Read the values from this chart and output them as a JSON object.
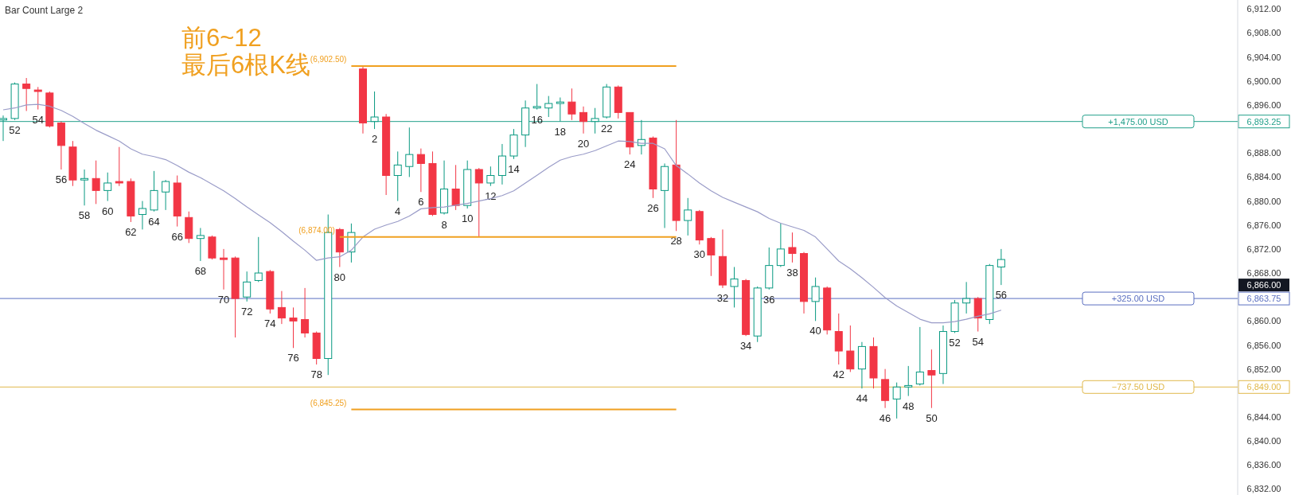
{
  "chart_data": {
    "type": "candlestick",
    "title": "Bar Count Large 2",
    "categories": [
      null,
      null,
      null,
      null,
      null,
      null,
      null,
      null,
      null,
      null,
      null,
      null,
      null,
      null,
      null,
      null,
      null,
      null,
      null,
      null,
      null,
      null,
      null,
      null,
      null,
      null,
      null,
      null,
      null,
      null,
      null,
      null,
      null,
      null,
      null,
      null,
      null,
      null,
      null,
      null,
      null,
      null,
      null,
      null,
      null,
      null,
      null,
      null,
      null,
      null,
      null,
      null,
      null,
      null,
      null,
      null,
      null,
      null,
      null,
      null,
      null,
      null,
      null,
      null,
      null,
      null,
      null,
      null,
      null,
      null,
      null,
      null,
      null,
      null,
      null,
      null,
      null,
      null,
      null,
      null,
      null,
      null,
      null,
      null,
      null,
      null,
      null
    ],
    "ohlc": [
      [
        6893.5,
        6894.25,
        6890,
        6893.75
      ],
      [
        6893.75,
        6899.75,
        6893.5,
        6899.5
      ],
      [
        6899.5,
        6900.5,
        6895,
        6898.75
      ],
      [
        6898.5,
        6899,
        6895.25,
        6898.25
      ],
      [
        6898,
        6898.25,
        6892.25,
        6892.5
      ],
      [
        6893,
        6893.25,
        6885.25,
        6889.25
      ],
      [
        6889,
        6890,
        6882.5,
        6883.5
      ],
      [
        6883.5,
        6885.25,
        6879.25,
        6883.75
      ],
      [
        6883.75,
        6886.75,
        6879.5,
        6881.75
      ],
      [
        6881.75,
        6884.75,
        6880,
        6883
      ],
      [
        6883.25,
        6889,
        6882.5,
        6883
      ],
      [
        6883.25,
        6883.75,
        6876.5,
        6877.5
      ],
      [
        6877.75,
        6880,
        6875.25,
        6878.75
      ],
      [
        6878.5,
        6885,
        6878.25,
        6881.75
      ],
      [
        6881.5,
        6883.5,
        6878.5,
        6883.25
      ],
      [
        6883,
        6884.25,
        6875.75,
        6877.5
      ],
      [
        6877.25,
        6878.25,
        6873,
        6873.75
      ],
      [
        6873.75,
        6875.5,
        6870,
        6874.25
      ],
      [
        6874,
        6874.25,
        6870.25,
        6870.5
      ],
      [
        6870.5,
        6872,
        6865.25,
        6870.25
      ],
      [
        6870.5,
        6870.75,
        6857.25,
        6863.75
      ],
      [
        6864,
        6868.25,
        6863.25,
        6866.5
      ],
      [
        6866.75,
        6874,
        6866.5,
        6868
      ],
      [
        6868.25,
        6868.5,
        6861.25,
        6862
      ],
      [
        6862.25,
        6865,
        6859.5,
        6860.5
      ],
      [
        6860.5,
        6862.25,
        6855.5,
        6860
      ],
      [
        6860.25,
        6865.5,
        6857.25,
        6858
      ],
      [
        6858,
        6858.25,
        6852.75,
        6853.75
      ],
      [
        6853.75,
        6877.75,
        6851,
        6874.75
      ],
      [
        6875.25,
        6875.5,
        6869,
        6871.5
      ],
      [
        6871.5,
        6876.25,
        6869.75,
        6874.75
      ],
      [
        6902,
        6902.5,
        6891.25,
        6893
      ],
      [
        6893.25,
        6898.25,
        6892,
        6894
      ],
      [
        6894,
        6894.5,
        6881,
        6884.25
      ],
      [
        6884.25,
        6888.25,
        6880,
        6886
      ],
      [
        6885.75,
        6892.25,
        6884,
        6887.75
      ],
      [
        6887.75,
        6888.75,
        6881.5,
        6886.25
      ],
      [
        6886.25,
        6888.25,
        6877.5,
        6877.75
      ],
      [
        6878,
        6886.75,
        6877.75,
        6882
      ],
      [
        6882,
        6886,
        6878.5,
        6879.25
      ],
      [
        6879.25,
        6886.75,
        6878.75,
        6885.25
      ],
      [
        6885.25,
        6885.5,
        6874,
        6883
      ],
      [
        6883,
        6885.75,
        6882.5,
        6884.25
      ],
      [
        6884.25,
        6889.5,
        6882.75,
        6887.5
      ],
      [
        6887.5,
        6892,
        6887,
        6891
      ],
      [
        6891,
        6896.75,
        6889,
        6895.5
      ],
      [
        6895.5,
        6899.5,
        6895.25,
        6895.75
      ],
      [
        6895.5,
        6897.5,
        6894,
        6896.25
      ],
      [
        6896.25,
        6897.25,
        6893.25,
        6896.5
      ],
      [
        6896.5,
        6898.75,
        6893.5,
        6894.5
      ],
      [
        6894.75,
        6895.75,
        6891.25,
        6893.25
      ],
      [
        6893.25,
        6895.5,
        6891.25,
        6893.75
      ],
      [
        6894,
        6899.5,
        6893.75,
        6899
      ],
      [
        6899,
        6899.25,
        6893.75,
        6894.75
      ],
      [
        6894.75,
        6894.75,
        6887.75,
        6889
      ],
      [
        6889.25,
        6893.5,
        6887.75,
        6890.25
      ],
      [
        6890.5,
        6890.75,
        6880.5,
        6882
      ],
      [
        6881.75,
        6886.25,
        6875.5,
        6885.75
      ],
      [
        6886,
        6893.5,
        6875,
        6876.75
      ],
      [
        6876.75,
        6880.5,
        6874.25,
        6878.5
      ],
      [
        6878.25,
        6878.5,
        6872.75,
        6873.5
      ],
      [
        6873.75,
        6874,
        6867.5,
        6871
      ],
      [
        6870.75,
        6875.25,
        6865.5,
        6866
      ],
      [
        6865.75,
        6869,
        6862.25,
        6867
      ],
      [
        6866.75,
        6867,
        6857.5,
        6857.75
      ],
      [
        6857.5,
        6865.75,
        6856.5,
        6865.5
      ],
      [
        6865.5,
        6872.25,
        6865.25,
        6869.25
      ],
      [
        6869.25,
        6876.25,
        6869,
        6872
      ],
      [
        6872.25,
        6874.75,
        6869.75,
        6871.25
      ],
      [
        6871.25,
        6871.5,
        6861.25,
        6863.25
      ],
      [
        6863.25,
        6867.25,
        6860,
        6865.75
      ],
      [
        6865.5,
        6865.75,
        6857.75,
        6858.5
      ],
      [
        6858.25,
        6861.25,
        6852.75,
        6855
      ],
      [
        6855,
        6859.25,
        6851.5,
        6852
      ],
      [
        6852,
        6856.5,
        6848.75,
        6855.75
      ],
      [
        6855.75,
        6857.25,
        6848.75,
        6850.5
      ],
      [
        6850.25,
        6852,
        6845.5,
        6846.75
      ],
      [
        6847,
        6849.75,
        6843.75,
        6849
      ],
      [
        6849,
        6852.5,
        6847.5,
        6849.25
      ],
      [
        6849.5,
        6859,
        6849.25,
        6851.5
      ],
      [
        6851.75,
        6855.25,
        6845.5,
        6851
      ],
      [
        6851.25,
        6859.25,
        6849.5,
        6858.25
      ],
      [
        6858.25,
        6863.5,
        6858,
        6863
      ],
      [
        6863,
        6866.5,
        6861.25,
        6863.75
      ],
      [
        6863.75,
        6864,
        6858.25,
        6860.5
      ],
      [
        6860.25,
        6869.5,
        6859.5,
        6869.25
      ],
      [
        6869,
        6872,
        6866,
        6870.25
      ]
    ],
    "colors": [
      "#089981",
      "#089981",
      "#f23645",
      "#f23645",
      "#f23645",
      "#f23645",
      "#f23645",
      "#089981",
      "#f23645",
      "#089981",
      "#f23645",
      "#f23645",
      "#089981",
      "#089981",
      "#089981",
      "#f23645",
      "#f23645",
      "#089981",
      "#f23645",
      "#f23645",
      "#f23645",
      "#089981",
      "#089981",
      "#f23645",
      "#f23645",
      "#f23645",
      "#f23645",
      "#f23645",
      "#089981",
      "#f23645",
      "#089981",
      "#f23645",
      "#089981",
      "#f23645",
      "#089981",
      "#089981",
      "#f23645",
      "#f23645",
      "#089981",
      "#f23645",
      "#089981",
      "#f23645",
      "#089981",
      "#089981",
      "#089981",
      "#089981",
      "#089981",
      "#089981",
      "#089981",
      "#f23645",
      "#f23645",
      "#089981",
      "#089981",
      "#f23645",
      "#f23645",
      "#089981",
      "#f23645",
      "#089981",
      "#f23645",
      "#089981",
      "#f23645",
      "#f23645",
      "#f23645",
      "#089981",
      "#f23645",
      "#089981",
      "#089981",
      "#089981",
      "#f23645",
      "#f23645",
      "#089981",
      "#f23645",
      "#f23645",
      "#f23645",
      "#089981",
      "#f23645",
      "#f23645",
      "#089981",
      "#089981",
      "#089981",
      "#f23645",
      "#089981",
      "#089981",
      "#089981",
      "#f23645",
      "#089981",
      "#089981"
    ],
    "value_labels": [
      null,
      "52",
      null,
      "54",
      null,
      "56",
      null,
      "58",
      null,
      "60",
      null,
      "62",
      null,
      "64",
      null,
      "66",
      null,
      "68",
      null,
      "70",
      null,
      "72",
      null,
      "74",
      null,
      "76",
      null,
      "78",
      null,
      "80",
      null,
      null,
      "2",
      null,
      "4",
      null,
      "6",
      null,
      "8",
      null,
      "10",
      null,
      "12",
      null,
      "14",
      null,
      "16",
      null,
      "18",
      null,
      "20",
      null,
      "22",
      null,
      "24",
      null,
      "26",
      null,
      "28",
      null,
      "30",
      null,
      "32",
      null,
      "34",
      null,
      "36",
      null,
      "38",
      null,
      "40",
      null,
      "42",
      null,
      "44",
      null,
      "46",
      null,
      "48",
      null,
      "50",
      null,
      "52",
      null,
      "54",
      null,
      "56"
    ],
    "series": [
      {
        "type": "line",
        "color": "#9a9cc8",
        "values": [
          6895.2,
          6895.5,
          6896.0,
          6896.1,
          6895.8,
          6895.1,
          6894.1,
          6892.9,
          6891.8,
          6890.9,
          6890.0,
          6888.7,
          6887.8,
          6887.4,
          6886.9,
          6885.9,
          6884.8,
          6883.9,
          6882.8,
          6881.7,
          6880.4,
          6879.0,
          6877.7,
          6876.4,
          6874.9,
          6873.3,
          6871.8,
          6870.1,
          6870.5,
          6870.7,
          6871.8,
          6874.0,
          6875.3,
          6876.0,
          6876.6,
          6877.5,
          6878.7,
          6878.9,
          6879.0,
          6879.3,
          6879.6,
          6880.0,
          6880.4,
          6880.9,
          6881.7,
          6883.0,
          6884.3,
          6885.6,
          6886.8,
          6887.4,
          6887.8,
          6888.4,
          6889.2,
          6890.0,
          6889.9,
          6889.6,
          6889.6,
          6888.7,
          6885.9,
          6884.5,
          6883.0,
          6881.7,
          6880.6,
          6879.8,
          6879.0,
          6878.2,
          6877.1,
          6876.3,
          6875.7,
          6875.1,
          6874.0,
          6872.0,
          6870.0,
          6868.7,
          6867.2,
          6865.6,
          6863.9,
          6862.5,
          6861.4,
          6860.3,
          6859.7,
          6859.7,
          6859.9,
          6860.3,
          6860.8,
          6861.2,
          6861.8
        ]
      },
      {
        "type": "line",
        "name": "(6,902.50)",
        "color": "#f0a020",
        "values": [
          null,
          null,
          null,
          null,
          null,
          null,
          null,
          null,
          null,
          null,
          null,
          null,
          null,
          null,
          null,
          null,
          null,
          null,
          null,
          null,
          null,
          null,
          null,
          null,
          null,
          null,
          null,
          null,
          null,
          null,
          6902.5,
          6902.5,
          6902.5,
          6902.5,
          6902.5,
          6902.5,
          6902.5,
          6902.5,
          6902.5,
          6902.5,
          6902.5,
          6902.5,
          6902.5,
          6902.5,
          6902.5,
          6902.5,
          6902.5,
          6902.5,
          6902.5,
          6902.5,
          6902.5,
          6902.5,
          6902.5,
          6902.5,
          6902.5,
          6902.5,
          6902.5,
          6902.5,
          6902.5,
          null,
          null,
          null,
          null,
          null,
          null,
          null,
          null,
          null,
          null,
          null,
          null,
          null,
          null,
          null,
          null,
          null,
          null,
          null,
          null,
          null,
          null,
          null,
          null,
          null,
          null,
          null,
          null
        ]
      },
      {
        "type": "line",
        "name": "(6,874.00)",
        "color": "#f0a020",
        "values": [
          null,
          null,
          null,
          null,
          null,
          null,
          null,
          null,
          null,
          null,
          null,
          null,
          null,
          null,
          null,
          null,
          null,
          null,
          null,
          null,
          null,
          null,
          null,
          null,
          null,
          null,
          null,
          null,
          null,
          6874,
          6874,
          6874,
          6874,
          6874,
          6874,
          6874,
          6874,
          6874,
          6874,
          6874,
          6874,
          6874,
          6874,
          6874,
          6874,
          6874,
          6874,
          6874,
          6874,
          6874,
          6874,
          6874,
          6874,
          6874,
          6874,
          6874,
          6874,
          6874,
          6874,
          null,
          null,
          null,
          null,
          null,
          null,
          null,
          null,
          null,
          null,
          null,
          null,
          null,
          null,
          null,
          null,
          null,
          null,
          null,
          null,
          null,
          null,
          null,
          null,
          null,
          null,
          null,
          null
        ]
      },
      {
        "type": "line",
        "name": "(6,845.25)",
        "color": "#f0a020",
        "values": [
          null,
          null,
          null,
          null,
          null,
          null,
          null,
          null,
          null,
          null,
          null,
          null,
          null,
          null,
          null,
          null,
          null,
          null,
          null,
          null,
          null,
          null,
          null,
          null,
          null,
          null,
          null,
          null,
          null,
          null,
          6845.25,
          6845.25,
          6845.25,
          6845.25,
          6845.25,
          6845.25,
          6845.25,
          6845.25,
          6845.25,
          6845.25,
          6845.25,
          6845.25,
          6845.25,
          6845.25,
          6845.25,
          6845.25,
          6845.25,
          6845.25,
          6845.25,
          6845.25,
          6845.25,
          6845.25,
          6845.25,
          6845.25,
          6845.25,
          6845.25,
          6845.25,
          6845.25,
          6845.25,
          null,
          null,
          null,
          null,
          null,
          null,
          null,
          null,
          null,
          null,
          null,
          null,
          null,
          null,
          null,
          null,
          null,
          null,
          null,
          null,
          null,
          null,
          null,
          null,
          null,
          null,
          null,
          null
        ]
      }
    ],
    "ylim": [
      6831.0,
      6913.5
    ],
    "yticks": [
      {
        "value": 6832,
        "label": "6,832.00"
      },
      {
        "value": 6836,
        "label": "6,836.00"
      },
      {
        "value": 6840,
        "label": "6,840.00"
      },
      {
        "value": 6844,
        "label": "6,844.00"
      },
      {
        "value": 6849,
        "label": "6,849.00"
      },
      {
        "value": 6852,
        "label": "6,852.00"
      },
      {
        "value": 6856,
        "label": "6,856.00"
      },
      {
        "value": 6860,
        "label": "6,860.00"
      },
      {
        "value": 6863.75,
        "label": "6,863.75"
      },
      {
        "value": 6866,
        "label": "6,866.00"
      },
      {
        "value": 6868,
        "label": "6,868.00"
      },
      {
        "value": 6872,
        "label": "6,872.00"
      },
      {
        "value": 6876,
        "label": "6,876.00"
      },
      {
        "value": 6880,
        "label": "6,880.00"
      },
      {
        "value": 6884,
        "label": "6,884.00"
      },
      {
        "value": 6888,
        "label": "6,888.00"
      },
      {
        "value": 6893.25,
        "label": "6,893.25"
      },
      {
        "value": 6896,
        "label": "6,896.00"
      },
      {
        "value": 6900,
        "label": "6,900.00"
      },
      {
        "value": 6904,
        "label": "6,904.00"
      },
      {
        "value": 6908,
        "label": "6,908.00"
      },
      {
        "value": 6912,
        "label": "6,912.00"
      }
    ],
    "ref_lines": [
      {
        "axis": "y",
        "value": 6893.25,
        "label": "+1,475.00 USD",
        "color": "#22a08a"
      },
      {
        "axis": "y",
        "value": 6863.75,
        "label": "+325.00 USD",
        "color": "#5a6fc0"
      },
      {
        "axis": "y",
        "value": 6849,
        "label": "−737.50 USD",
        "color": "#e0b84a"
      }
    ],
    "annotations": [
      "前6~12\n最后6根K线"
    ],
    "grid": false
  }
}
